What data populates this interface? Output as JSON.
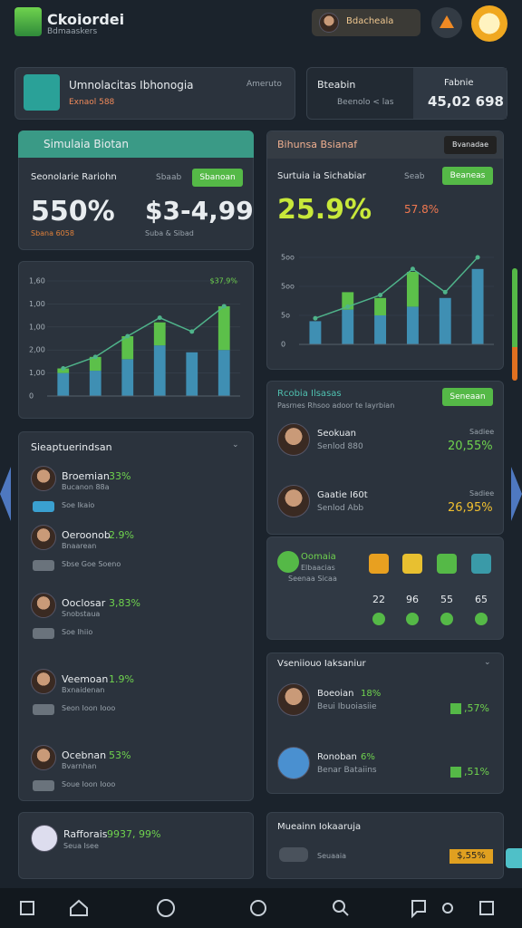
{
  "header": {
    "title": "Ckoiordei",
    "subtitle": "Bdmaaskers",
    "user": "Bdacheala"
  },
  "account": {
    "title": "Umnolacitas Ibhonogia",
    "subtitle": "Exnaol 588",
    "action": "Ameruto"
  },
  "balance": {
    "title": "Bteabin",
    "subtitle": "Beenolo < las",
    "label": "Fabnie",
    "value": "45,02 698"
  },
  "simulation": {
    "title": "Simulaia Biotan",
    "label": "Seonolarie Rariohn",
    "tag": "Sbaab",
    "button": "Sbanoan",
    "stat1": "550%",
    "stat2": "$3-4,99",
    "note1": "Sbana 6058",
    "note2": "Suba & Sibad"
  },
  "performance": {
    "title": "Bihunsa Bsianaf",
    "button": "Bvanadae",
    "label": "Surtuia ia Sichabiar",
    "tag": "Seab",
    "action": "Beaneas",
    "stat1": "25.9%",
    "stat2": "57.8%"
  },
  "charts": [
    {
      "type": "bar",
      "label": "$37,9%",
      "ylim": [
        0,
        5
      ],
      "yticks": [
        {
          "value": 5,
          "label": "1,60"
        },
        {
          "value": 4,
          "label": "1,00"
        },
        {
          "value": 3,
          "label": "1,00"
        },
        {
          "value": 2,
          "label": "2,00"
        },
        {
          "value": 1,
          "label": "1,00"
        },
        0
      ],
      "series": [
        {
          "color": "#3f8fb3",
          "values": [
            1.0,
            1.1,
            1.6,
            2.2,
            1.9,
            2.0
          ]
        },
        {
          "color": "#5cc04a",
          "values": [
            0.2,
            0.6,
            1.0,
            1.0,
            0,
            1.9
          ]
        }
      ],
      "line": {
        "color": "#4fb38a",
        "values": [
          1.2,
          1.7,
          2.6,
          3.4,
          2.8,
          3.9
        ]
      }
    },
    {
      "type": "bar",
      "ylim": [
        0,
        3
      ],
      "yticks": [
        {
          "value": 3,
          "label": "5oo"
        },
        {
          "value": 2,
          "label": "5oo"
        },
        {
          "value": 1,
          "label": "5o"
        },
        0
      ],
      "series": [
        {
          "color": "#3f8fb3",
          "values": [
            0.8,
            1.2,
            1.0,
            1.3,
            1.6,
            2.6
          ]
        },
        {
          "color": "#5cc04a",
          "values": [
            0,
            0.6,
            0.6,
            1.2,
            0,
            0
          ]
        }
      ],
      "line": {
        "color": "#4fb38a",
        "values": [
          0.9,
          1.3,
          1.7,
          2.6,
          1.8,
          3.0
        ]
      }
    }
  ],
  "holdings": {
    "title": "Sieaptuerindsan",
    "items": [
      {
        "name": "Broemian",
        "change": "33%",
        "detail": "Bucanon 88a",
        "note": "Soe Ikaio"
      },
      {
        "name": "Oeroonob",
        "change": "2.9%",
        "detail": "Bnaarean",
        "note": "Sbse Goe Soeno"
      },
      {
        "name": "Ooclosar",
        "change": "3,83%",
        "detail": "Snobstaua",
        "note": "Soe Ihiio"
      },
      {
        "name": "Veemoan",
        "change": "1.9%",
        "detail": "Bxnaidenan",
        "note": "Seon Ioon Iooo"
      },
      {
        "name": "Ocebnan",
        "change": "53%",
        "detail": "Bvarnhan",
        "note": "Soue Ioon Iooo"
      }
    ]
  },
  "rankings": {
    "title": "Rcobia Ilsasas",
    "subtitle": "Pasrnes Rhsoo adoor te Iayrbian",
    "button": "Seneaan",
    "items": [
      {
        "name": "Seokuan",
        "detail": "Senlod 880",
        "label": "Sadiee",
        "change": "20,55%"
      },
      {
        "name": "Gaatie I60t",
        "detail": "Senlod Abb",
        "label": "Sadiee",
        "change": "26,95%"
      }
    ]
  },
  "stats": {
    "title": "Oomaia",
    "subtitle": "Elbaacias",
    "detail": "Seenaa Sicaa",
    "counts": [
      22,
      96,
      55,
      65
    ]
  },
  "watch": {
    "title": "Vseniiouo Iaksaniur",
    "items": [
      {
        "name": "Boeoian",
        "change": "18%",
        "detail": "Beui Ibuoiasiie",
        "value": ",57%"
      },
      {
        "name": "Ronoban",
        "change": "6%",
        "detail": "Benar Bataiins",
        "value": ",51%"
      }
    ]
  },
  "footer_left": {
    "name": "Rafforais",
    "value": "9937, 99%",
    "detail": "Seua Isee"
  },
  "footer_right": {
    "title": "Mueainn Iokaaruja",
    "detail": "Seuaaia",
    "value": "$,55%"
  }
}
